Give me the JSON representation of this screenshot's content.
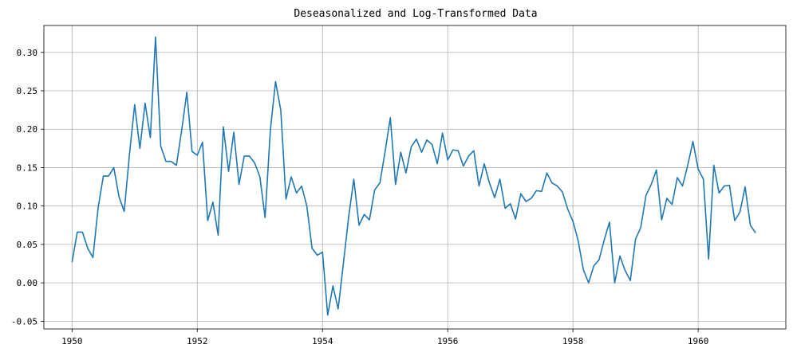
{
  "chart_data": {
    "type": "line",
    "title": "Deseasonalized and Log-Transformed Data",
    "xlabel": "",
    "ylabel": "",
    "xlim": [
      1949.55,
      1961.4
    ],
    "ylim": [
      -0.06,
      0.335
    ],
    "grid": true,
    "x_ticks": [
      1950,
      1952,
      1954,
      1956,
      1958,
      1960
    ],
    "x_tick_labels": [
      "1950",
      "1952",
      "1954",
      "1956",
      "1958",
      "1960"
    ],
    "y_ticks": [
      -0.05,
      0.0,
      0.05,
      0.1,
      0.15,
      0.2,
      0.25,
      0.3
    ],
    "y_tick_labels": [
      "-0.05",
      "0.00",
      "0.05",
      "0.10",
      "0.15",
      "0.20",
      "0.25",
      "0.30"
    ],
    "colors": {
      "series": "#1f77b4",
      "grid": "#b0b0b0",
      "axis": "#000000"
    },
    "series": [
      {
        "x_start": 1950.0,
        "x_step": 0.08333333,
        "values": [
          0.027,
          0.066,
          0.066,
          0.045,
          0.033,
          0.098,
          0.139,
          0.139,
          0.15,
          0.112,
          0.093,
          0.167,
          0.232,
          0.175,
          0.234,
          0.189,
          0.32,
          0.178,
          0.158,
          0.158,
          0.153,
          0.198,
          0.248,
          0.171,
          0.166,
          0.183,
          0.081,
          0.105,
          0.062,
          0.203,
          0.145,
          0.196,
          0.128,
          0.165,
          0.165,
          0.156,
          0.138,
          0.085,
          0.198,
          0.262,
          0.225,
          0.109,
          0.138,
          0.117,
          0.126,
          0.1,
          0.045,
          0.036,
          0.04,
          -0.042,
          -0.004,
          -0.034,
          0.025,
          0.085,
          0.135,
          0.075,
          0.089,
          0.082,
          0.121,
          0.13,
          0.171,
          0.215,
          0.128,
          0.17,
          0.143,
          0.177,
          0.187,
          0.17,
          0.186,
          0.18,
          0.155,
          0.195,
          0.16,
          0.173,
          0.172,
          0.152,
          0.165,
          0.172,
          0.126,
          0.155,
          0.13,
          0.111,
          0.135,
          0.097,
          0.103,
          0.083,
          0.116,
          0.106,
          0.11,
          0.12,
          0.119,
          0.143,
          0.13,
          0.126,
          0.118,
          0.096,
          0.08,
          0.055,
          0.017,
          0.0,
          0.022,
          0.03,
          0.056,
          0.079,
          0.0,
          0.035,
          0.016,
          0.003,
          0.057,
          0.072,
          0.114,
          0.128,
          0.147,
          0.082,
          0.11,
          0.102,
          0.137,
          0.126,
          0.153,
          0.184,
          0.148,
          0.135,
          0.031,
          0.153,
          0.117,
          0.126,
          0.127,
          0.081,
          0.092,
          0.125,
          0.075,
          0.065
        ]
      }
    ]
  }
}
